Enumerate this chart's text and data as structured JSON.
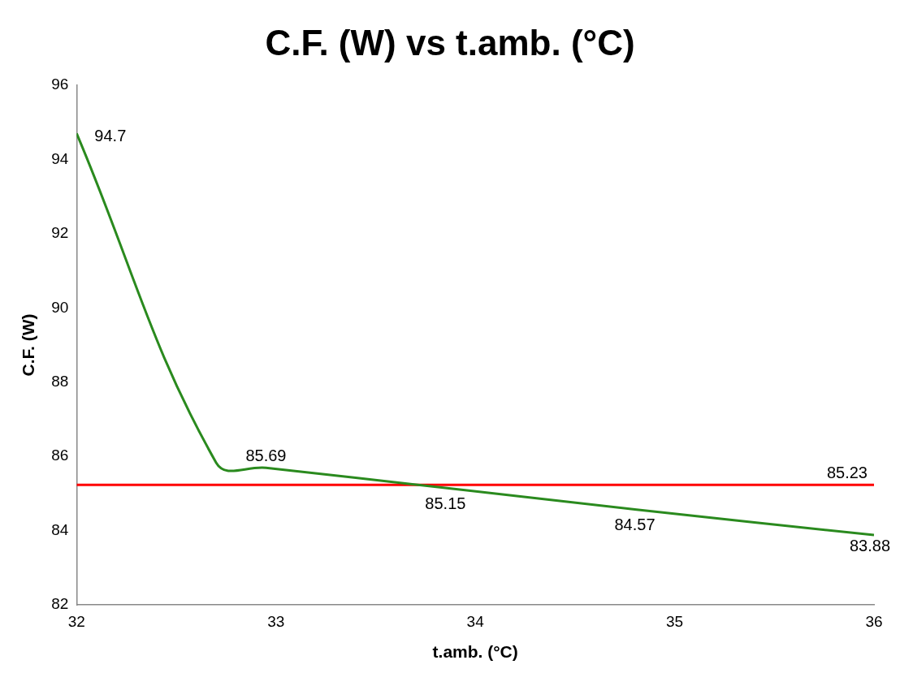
{
  "chart_data": {
    "type": "line",
    "title": "C.F. (W) vs t.amb. (°C)",
    "xlabel": "t.amb. (°C)",
    "ylabel": "C.F. (W)",
    "x": [
      32,
      32.7,
      32.95,
      33.85,
      34.8,
      36
    ],
    "series": [
      {
        "color": "#2a8a1e",
        "values": [
          94.7,
          85.83,
          85.69,
          85.15,
          84.57,
          83.88
        ],
        "value_labels": [
          "94.7",
          null,
          "85.69",
          "85.15",
          "84.57",
          "83.88"
        ]
      }
    ],
    "xlim": [
      32,
      36
    ],
    "xticks": [
      32,
      33,
      34,
      35,
      36
    ],
    "ylim": [
      82,
      96
    ],
    "yticks": [
      82,
      84,
      86,
      88,
      90,
      92,
      94,
      96
    ],
    "ref_lines": [
      {
        "axis": "y",
        "value": 85.23,
        "label": "85.23",
        "color": "#ff0000"
      }
    ],
    "grid": false,
    "legend": false,
    "marker": "none"
  }
}
